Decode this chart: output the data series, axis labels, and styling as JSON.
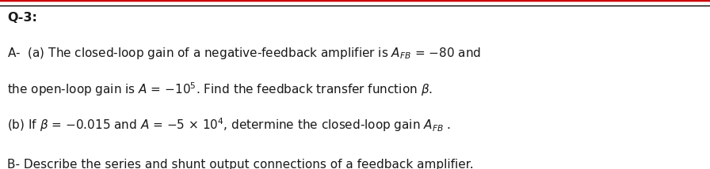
{
  "title": "Q-3:",
  "line1": "A-  (a) The closed-loop gain of a negative-feedback amplifier is $A_{FB}$ = $-$80 and",
  "line2": "the open-loop gain is $A$ = $-$10$^5$. Find the feedback transfer function $\\beta$.",
  "line3": "(b) If $\\beta$ = $-$0.015 and $A$ = $-$5 $\\times$ 10$^4$, determine the closed-loop gain $A_{FB}$ .",
  "bottom_text": "B- Describe the series and shunt output connections of a feedback amplifier.",
  "bg_color": "#ffffff",
  "text_color": "#1a1a1a",
  "top_bar_color": "#cc0000",
  "separator_color": "#000000",
  "font_size_title": 11.5,
  "font_size_body": 11.0,
  "fig_width": 8.96,
  "fig_height": 2.14,
  "dpi": 100
}
